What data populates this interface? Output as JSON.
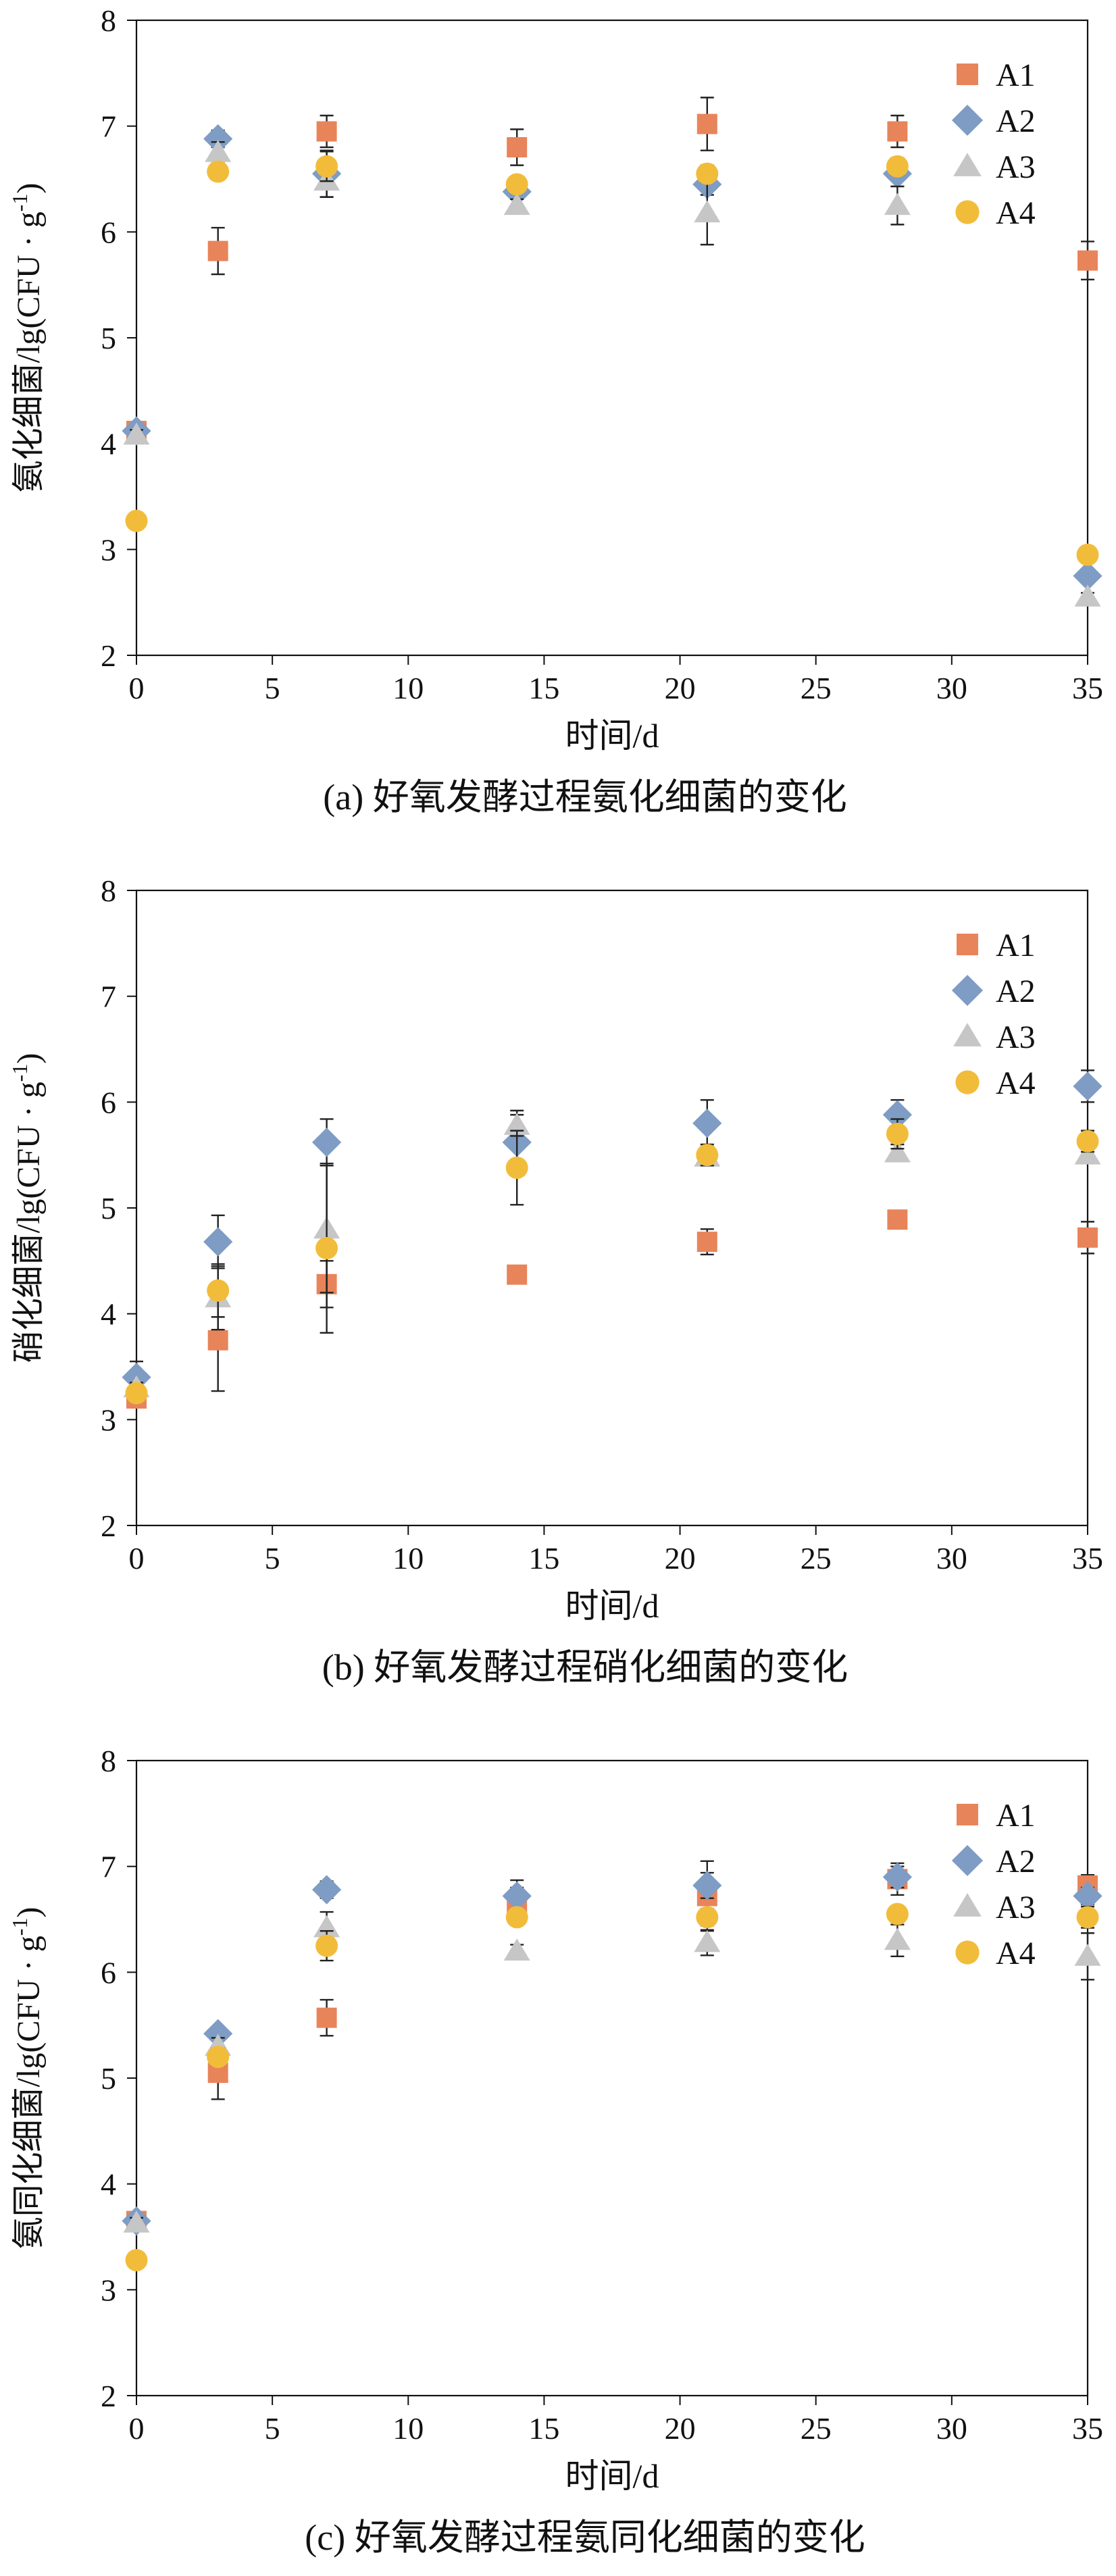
{
  "colors": {
    "A1": "#E8845A",
    "A2": "#7E9CC4",
    "A3": "#C6C6C6",
    "A4": "#F2BC3B",
    "axis": "#111111"
  },
  "legend_markers": {
    "A1": "square",
    "A2": "diamond",
    "A3": "triangle",
    "A4": "circle"
  },
  "chart_data": [
    {
      "type": "scatter",
      "caption": "(a) 好氧发酵过程氨化细菌的变化",
      "xlabel": "时间/d",
      "ylabel_main": "氨化细菌/lg(CFU · g",
      "ylabel_sup": "-1",
      "ylabel_end": ")",
      "xlim": [
        0,
        35
      ],
      "ylim": [
        2,
        8
      ],
      "xticks": [
        "0",
        "5",
        "10",
        "15",
        "20",
        "25",
        "30",
        "35"
      ],
      "yticks": [
        "2",
        "3",
        "4",
        "5",
        "6",
        "7",
        "8"
      ],
      "legend": [
        "A1",
        "A2",
        "A3",
        "A4"
      ],
      "x": [
        0,
        3,
        7,
        14,
        21,
        28,
        35
      ],
      "series": [
        {
          "name": "A1",
          "values": [
            4.12,
            5.82,
            6.95,
            6.8,
            7.02,
            6.95,
            5.73
          ],
          "errors": [
            0.05,
            0.22,
            0.15,
            0.17,
            0.25,
            0.15,
            0.18
          ]
        },
        {
          "name": "A2",
          "values": [
            4.12,
            6.88,
            6.55,
            6.38,
            6.45,
            6.55,
            2.75
          ],
          "errors": [
            0.05,
            0.08,
            0.22,
            0.05,
            0.1,
            0.12,
            0.06
          ]
        },
        {
          "name": "A3",
          "values": [
            4.08,
            6.75,
            6.48,
            6.25,
            6.18,
            6.25,
            2.55
          ],
          "errors": [
            0.05,
            0.1,
            0.15,
            0.06,
            0.3,
            0.18,
            0.04
          ]
        },
        {
          "name": "A4",
          "values": [
            3.27,
            6.57,
            6.62,
            6.45,
            6.55,
            6.62,
            2.95
          ],
          "errors": [
            0.04,
            0.06,
            0.14,
            0.06,
            0.08,
            0.08,
            0.05
          ]
        }
      ]
    },
    {
      "type": "scatter",
      "caption": "(b) 好氧发酵过程硝化细菌的变化",
      "xlabel": "时间/d",
      "ylabel_main": "硝化细菌/lg(CFU · g",
      "ylabel_sup": "-1",
      "ylabel_end": ")",
      "xlim": [
        0,
        35
      ],
      "ylim": [
        2,
        8
      ],
      "xticks": [
        "0",
        "5",
        "10",
        "15",
        "20",
        "25",
        "30",
        "35"
      ],
      "yticks": [
        "2",
        "3",
        "4",
        "5",
        "6",
        "7",
        "8"
      ],
      "legend": [
        "A1",
        "A2",
        "A3",
        "A4"
      ],
      "x": [
        0,
        3,
        7,
        14,
        21,
        28,
        35
      ],
      "series": [
        {
          "name": "A1",
          "values": [
            3.2,
            3.75,
            4.28,
            4.37,
            4.68,
            4.89,
            4.72
          ],
          "errors": [
            0.05,
            0.48,
            0.22,
            0.05,
            0.12,
            0.06,
            0.15
          ]
        },
        {
          "name": "A2",
          "values": [
            3.4,
            4.68,
            5.62,
            5.62,
            5.8,
            5.88,
            6.15
          ],
          "errors": [
            0.15,
            0.25,
            0.22,
            0.3,
            0.22,
            0.14,
            0.15
          ]
        },
        {
          "name": "A3",
          "values": [
            3.3,
            4.15,
            4.8,
            5.78,
            5.48,
            5.52,
            5.5
          ],
          "errors": [
            0.05,
            0.3,
            0.6,
            0.1,
            0.06,
            0.08,
            0.06
          ]
        },
        {
          "name": "A4",
          "values": [
            3.25,
            4.22,
            4.62,
            5.38,
            5.5,
            5.7,
            5.63
          ],
          "errors": [
            0.05,
            0.25,
            0.8,
            0.35,
            0.1,
            0.14,
            0.1
          ]
        }
      ]
    },
    {
      "type": "scatter",
      "caption": "(c) 好氧发酵过程氨同化细菌的变化",
      "xlabel": "时间/d",
      "ylabel_main": "氨同化细菌/lg(CFU · g",
      "ylabel_sup": "-1",
      "ylabel_end": ")",
      "xlim": [
        0,
        35
      ],
      "ylim": [
        2,
        8
      ],
      "xticks": [
        "0",
        "5",
        "10",
        "15",
        "20",
        "25",
        "30",
        "35"
      ],
      "yticks": [
        "2",
        "3",
        "4",
        "5",
        "6",
        "7",
        "8"
      ],
      "legend": [
        "A1",
        "A2",
        "A3",
        "A4"
      ],
      "x": [
        0,
        3,
        7,
        14,
        21,
        28,
        35
      ],
      "series": [
        {
          "name": "A1",
          "values": [
            3.65,
            5.05,
            5.57,
            6.65,
            6.72,
            6.88,
            6.82
          ],
          "errors": [
            0.05,
            0.25,
            0.17,
            0.15,
            0.33,
            0.15,
            0.1
          ]
        },
        {
          "name": "A2",
          "values": [
            3.65,
            5.42,
            6.78,
            6.72,
            6.82,
            6.9,
            6.72
          ],
          "errors": [
            0.05,
            0.06,
            0.08,
            0.15,
            0.12,
            0.1,
            0.08
          ]
        },
        {
          "name": "A3",
          "values": [
            3.63,
            5.3,
            6.42,
            6.2,
            6.28,
            6.3,
            6.15
          ],
          "errors": [
            0.05,
            0.08,
            0.15,
            0.06,
            0.12,
            0.15,
            0.22
          ]
        },
        {
          "name": "A4",
          "values": [
            3.28,
            5.2,
            6.25,
            6.52,
            6.52,
            6.55,
            6.52
          ],
          "errors": [
            0.04,
            0.08,
            0.14,
            0.06,
            0.08,
            0.06,
            0.1
          ]
        }
      ]
    }
  ]
}
